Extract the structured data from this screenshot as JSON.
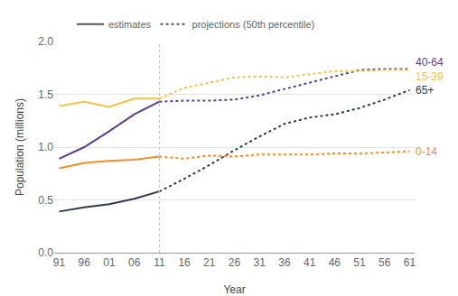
{
  "chart_data": {
    "type": "line",
    "x_label": "Year",
    "y_label": "Population (millions)",
    "categories": [
      "91",
      "96",
      "01",
      "06",
      "11",
      "16",
      "21",
      "26",
      "31",
      "36",
      "41",
      "46",
      "51",
      "56",
      "61"
    ],
    "divider_at": "11",
    "legend": "top",
    "legend_items": [
      {
        "label": "estimates",
        "line_style": "solid"
      },
      {
        "label": "projections (50th percentile)",
        "line_style": "dotted"
      }
    ],
    "series": [
      {
        "name": "40-64",
        "color": "#5b3f8c",
        "values": [
          0.89,
          1.0,
          1.15,
          1.31,
          1.43,
          null,
          null,
          null,
          null,
          null,
          null,
          null,
          null,
          null,
          null
        ],
        "projection": [
          null,
          null,
          null,
          null,
          1.43,
          1.44,
          1.44,
          1.45,
          1.49,
          1.55,
          1.61,
          1.67,
          1.73,
          1.74,
          1.74
        ]
      },
      {
        "name": "15-39",
        "color": "#f5c242",
        "values": [
          1.39,
          1.43,
          1.38,
          1.46,
          1.46,
          null,
          null,
          null,
          null,
          null,
          null,
          null,
          null,
          null,
          null
        ],
        "projection": [
          null,
          null,
          null,
          null,
          1.46,
          1.56,
          1.61,
          1.66,
          1.67,
          1.66,
          1.69,
          1.72,
          1.72,
          1.73,
          1.73
        ]
      },
      {
        "name": "65+",
        "color": "#2e3b4e",
        "values": [
          0.39,
          0.43,
          0.46,
          0.51,
          0.58,
          null,
          null,
          null,
          null,
          null,
          null,
          null,
          null,
          null,
          null
        ],
        "projection": [
          null,
          null,
          null,
          null,
          0.58,
          0.7,
          0.83,
          0.97,
          1.1,
          1.22,
          1.28,
          1.31,
          1.37,
          1.45,
          1.54
        ]
      },
      {
        "name": "0-14",
        "color": "#f28c28",
        "values": [
          0.8,
          0.85,
          0.87,
          0.88,
          0.91,
          null,
          null,
          null,
          null,
          null,
          null,
          null,
          null,
          null,
          null
        ],
        "projection": [
          null,
          null,
          null,
          null,
          0.91,
          0.89,
          0.92,
          0.91,
          0.93,
          0.93,
          0.93,
          0.94,
          0.94,
          0.95,
          0.96
        ]
      }
    ],
    "ylim": [
      0,
      2
    ],
    "yticks": [
      {
        "value": 0,
        "label": "0.0"
      },
      0.5,
      {
        "value": 1,
        "label": "1.0"
      },
      1.5,
      {
        "value": 2,
        "label": "2.0"
      }
    ],
    "grid": true
  }
}
